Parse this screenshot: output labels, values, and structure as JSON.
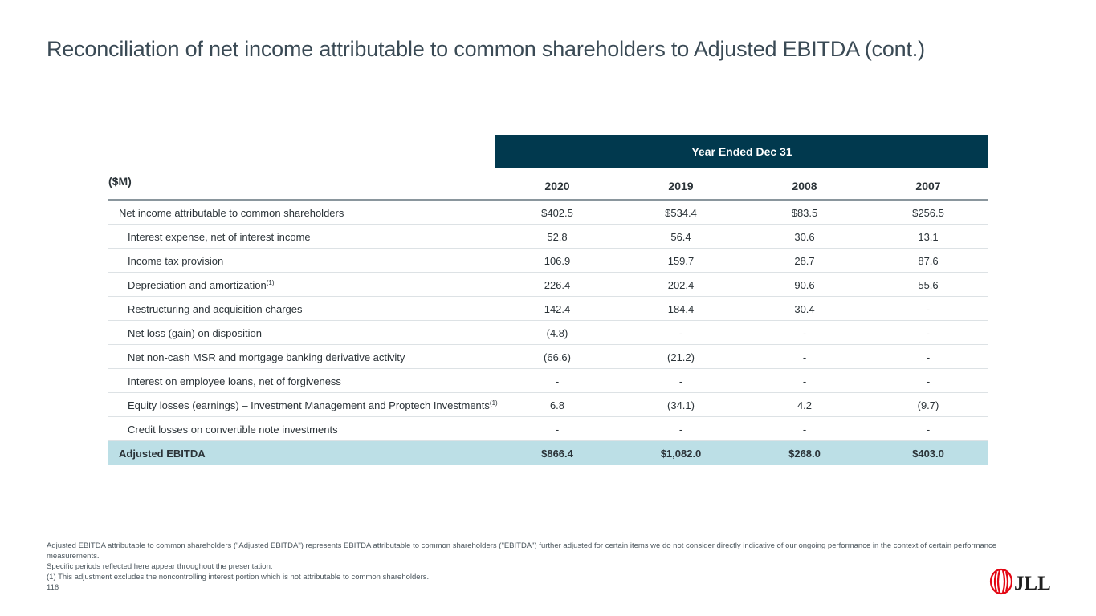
{
  "title": "Reconciliation of net income attributable to common shareholders to Adjusted EBITDA (cont.)",
  "table": {
    "units_label": "($M)",
    "group_header": "Year Ended Dec 31",
    "columns": [
      "2020",
      "2019",
      "2008",
      "2007"
    ],
    "rows": [
      {
        "label": "Net income attributable to common shareholders",
        "sup": "",
        "values": [
          "$402.5",
          "$534.4",
          "$83.5",
          "$256.5"
        ]
      },
      {
        "label": "Interest expense, net of interest income",
        "sup": "",
        "values": [
          "52.8",
          "56.4",
          "30.6",
          "13.1"
        ]
      },
      {
        "label": "Income tax provision",
        "sup": "",
        "values": [
          "106.9",
          "159.7",
          "28.7",
          "87.6"
        ]
      },
      {
        "label": "Depreciation and amortization",
        "sup": "(1)",
        "values": [
          "226.4",
          "202.4",
          "90.6",
          "55.6"
        ]
      },
      {
        "label": "Restructuring and acquisition charges",
        "sup": "",
        "values": [
          "142.4",
          "184.4",
          "30.4",
          "-"
        ]
      },
      {
        "label": "Net loss (gain) on disposition",
        "sup": "",
        "values": [
          "(4.8)",
          "-",
          "-",
          "-"
        ]
      },
      {
        "label": "Net non-cash MSR and mortgage banking derivative activity",
        "sup": "",
        "values": [
          "(66.6)",
          "(21.2)",
          "-",
          "-"
        ]
      },
      {
        "label": "Interest on employee loans, net of forgiveness",
        "sup": "",
        "values": [
          "-",
          "-",
          "-",
          "-"
        ]
      },
      {
        "label": "Equity losses (earnings) – Investment Management and Proptech Investments",
        "sup": "(1)",
        "values": [
          "6.8",
          "(34.1)",
          "4.2",
          "(9.7)"
        ]
      },
      {
        "label": "Credit losses on convertible note investments",
        "sup": "",
        "values": [
          "-",
          "-",
          "-",
          "-"
        ]
      }
    ],
    "total": {
      "label": "Adjusted EBITDA",
      "values": [
        "$866.4",
        "$1,082.0",
        "$268.0",
        "$403.0"
      ]
    }
  },
  "footnotes": {
    "line1": "Adjusted EBITDA attributable to common shareholders (\"Adjusted EBITDA\") represents EBITDA attributable to common shareholders (\"EBITDA\") further adjusted for certain items we do not consider directly indicative of our ongoing performance in the context of certain performance measurements.",
    "line2": "Specific periods reflected here appear throughout the presentation.",
    "line3": "(1) This adjustment excludes the noncontrolling interest portion which is not attributable to common shareholders.",
    "page_number": "116"
  },
  "logo": {
    "text": "JLL",
    "icon": "jll-flame-logo-icon",
    "color": "#e30613"
  }
}
